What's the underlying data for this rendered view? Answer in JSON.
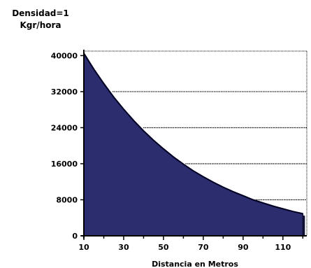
{
  "chart_data": {
    "type": "area",
    "title_lines": [
      "Densidad=1",
      "Kgr/hora"
    ],
    "xlabel": "Distancia en Metros",
    "ylabel": "",
    "x": [
      10,
      15,
      20,
      25,
      30,
      35,
      40,
      45,
      50,
      55,
      60,
      65,
      70,
      75,
      80,
      85,
      90,
      95,
      100,
      105,
      110,
      115,
      120
    ],
    "series": [
      {
        "values": [
          40500,
          37000,
          33800,
          30800,
          28100,
          25600,
          23300,
          21200,
          19300,
          17500,
          15900,
          14400,
          13100,
          11900,
          10800,
          9800,
          8900,
          8000,
          7300,
          6600,
          6000,
          5400,
          4900
        ]
      }
    ],
    "xticks": [
      "10",
      "30",
      "50",
      "70",
      "90",
      "110"
    ],
    "yticks": [
      "0",
      "8000",
      "16000",
      "24000",
      "32000",
      "40000"
    ],
    "xlim": [
      10,
      122
    ],
    "ylim": [
      0,
      41000
    ],
    "grid": "horizontal",
    "fill_color": "#2b2d6e",
    "edge_color": "#111133",
    "grid_color": "#000000"
  }
}
